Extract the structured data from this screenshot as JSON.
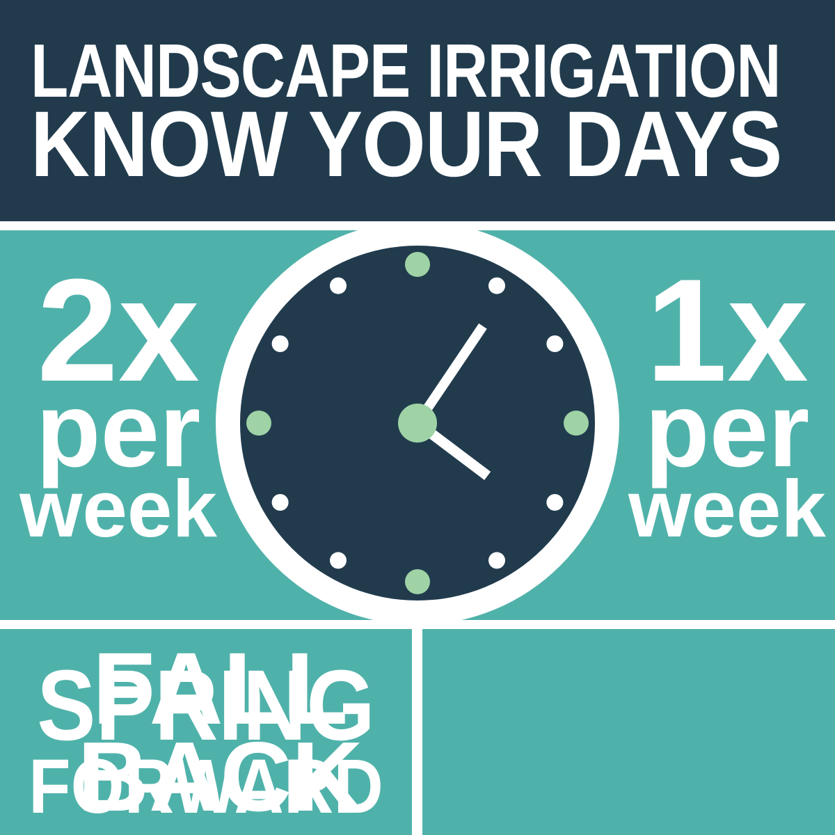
{
  "header": {
    "line1": "LANDSCAPE IRRIGATION",
    "line2": "KNOW YOUR DAYS"
  },
  "schedule": {
    "left": {
      "value": "2x",
      "unit_line1": "per",
      "unit_line2": "week"
    },
    "right": {
      "value": "1x",
      "unit_line1": "per",
      "unit_line2": "week"
    },
    "clock": {
      "icon": "clock-icon",
      "accent_marker_positions": [
        "12",
        "3",
        "6",
        "9"
      ],
      "minute_hand_angle_deg": 34,
      "hour_hand_angle_deg": 127
    }
  },
  "footer": {
    "left": {
      "line1": "SPRING",
      "line2": "FORWARD"
    },
    "right": {
      "line1": "FALL",
      "line2": "BACK"
    }
  },
  "colors": {
    "navy": "#213B4D",
    "teal": "#4FB2AA",
    "green": "#9FD3A6",
    "white": "#FFFFFF"
  }
}
